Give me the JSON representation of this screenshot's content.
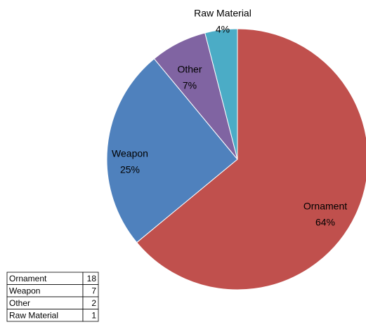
{
  "chart_data": {
    "type": "pie",
    "categories": [
      "Ornament",
      "Weapon",
      "Other",
      "Raw Material"
    ],
    "values": [
      64,
      25,
      7,
      4
    ],
    "value_labels": [
      "64%",
      "25%",
      "7%",
      "4%"
    ],
    "colors": [
      "#c0504d",
      "#4f81bd",
      "#8064a2",
      "#4bacc6"
    ]
  },
  "table": {
    "rows": [
      [
        "Ornament",
        "18"
      ],
      [
        "Weapon",
        "7"
      ],
      [
        "Other",
        "2"
      ],
      [
        "Raw Material",
        "1"
      ]
    ]
  }
}
